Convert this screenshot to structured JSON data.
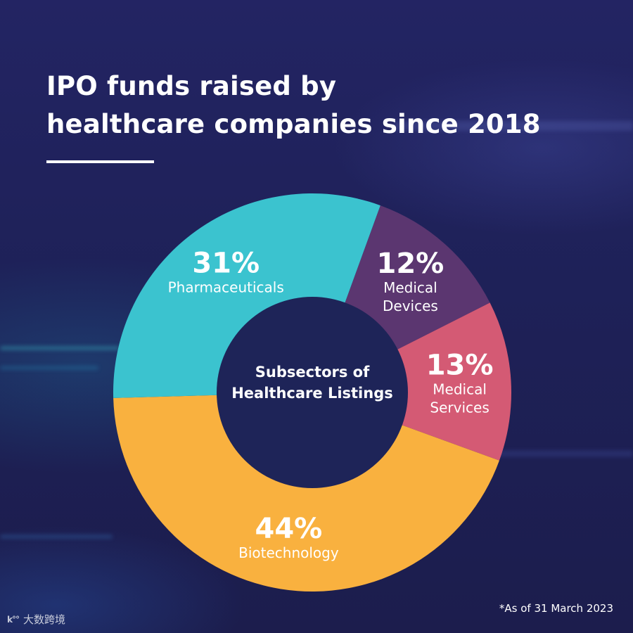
{
  "title": {
    "line1": "IPO funds raised by",
    "line2": "healthcare companies since 2018"
  },
  "footnote": "*As of 31 March 2023",
  "watermark": {
    "mark": "k°°",
    "text": "大数跨境"
  },
  "colors": {
    "background": "#1d1f50",
    "pharmaceuticals": "#3bc3cf",
    "medical_devices": "#5b3670",
    "medical_services": "#d45a74",
    "biotechnology": "#f9b13f",
    "center": "#1e2458"
  },
  "chart_data": {
    "type": "pie",
    "donut": true,
    "center_label": [
      "Subsectors of",
      "Healthcare Listings"
    ],
    "start_angle_deg": 20,
    "slices": [
      {
        "label": [
          "Medical",
          "Devices"
        ],
        "value": 12,
        "display": "12%",
        "color": "#5b3670"
      },
      {
        "label": [
          "Medical",
          "Services"
        ],
        "value": 13,
        "display": "13%",
        "color": "#d45a74"
      },
      {
        "label": [
          "Biotechnology"
        ],
        "value": 44,
        "display": "44%",
        "color": "#f9b13f"
      },
      {
        "label": [
          "Pharmaceuticals"
        ],
        "value": 31,
        "display": "31%",
        "color": "#3bc3cf"
      }
    ]
  }
}
